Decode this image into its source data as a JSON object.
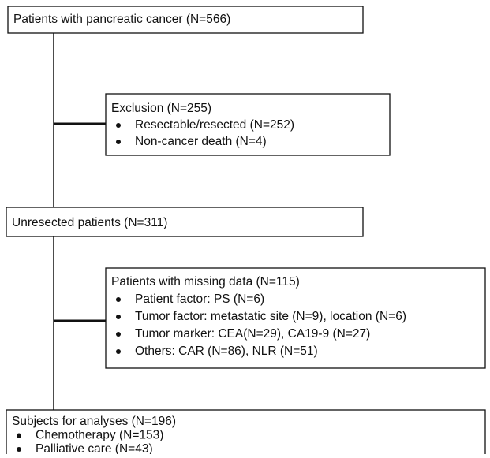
{
  "nodes": [
    {
      "title": "Patients with pancreatic cancer (N=566)",
      "items": []
    },
    {
      "title": "Exclusion (N=255)",
      "items": [
        "Resectable/resected (N=252)",
        "Non-cancer death (N=4)"
      ]
    },
    {
      "title": "Unresected patients (N=311)",
      "items": []
    },
    {
      "title": "Patients with missing data (N=115)",
      "items": [
        "Patient factor: PS (N=6)",
        "Tumor factor: metastatic site (N=9), location (N=6)",
        "Tumor marker: CEA(N=29), CA19-9 (N=27)",
        "Others: CAR (N=86), NLR (N=51)"
      ]
    },
    {
      "title": "Subjects for analyses (N=196)",
      "items": [
        "Chemotherapy (N=153)",
        "Palliative care (N=43)"
      ]
    }
  ]
}
